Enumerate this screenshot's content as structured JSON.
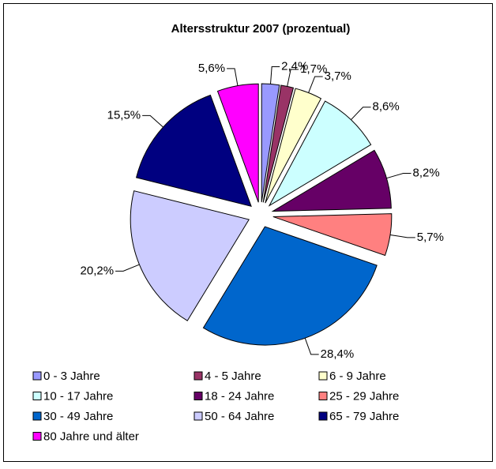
{
  "chart_data": {
    "type": "pie",
    "title": "Altersstruktur 2007 (prozentual)",
    "categories": [
      "0 - 3 Jahre",
      "4 - 5 Jahre",
      "6 - 9 Jahre",
      "10 - 17 Jahre",
      "18 - 24 Jahre",
      "25 - 29 Jahre",
      "30 - 49 Jahre",
      "50 - 64 Jahre",
      "65 - 79 Jahre",
      "80 Jahre und älter"
    ],
    "values": [
      2.4,
      1.7,
      3.7,
      8.6,
      8.2,
      5.7,
      28.4,
      20.2,
      15.5,
      5.6
    ],
    "value_labels": [
      "2,4%",
      "1,7%",
      "3,7%",
      "8,6%",
      "8,2%",
      "5,7%",
      "28,4%",
      "20,2%",
      "15,5%",
      "5,6%"
    ],
    "colors": [
      "#9999ff",
      "#993366",
      "#ffffcc",
      "#ccffff",
      "#660066",
      "#ff8080",
      "#0066cc",
      "#ccccff",
      "#000080",
      "#ff00ff"
    ],
    "legend": "bottom"
  }
}
